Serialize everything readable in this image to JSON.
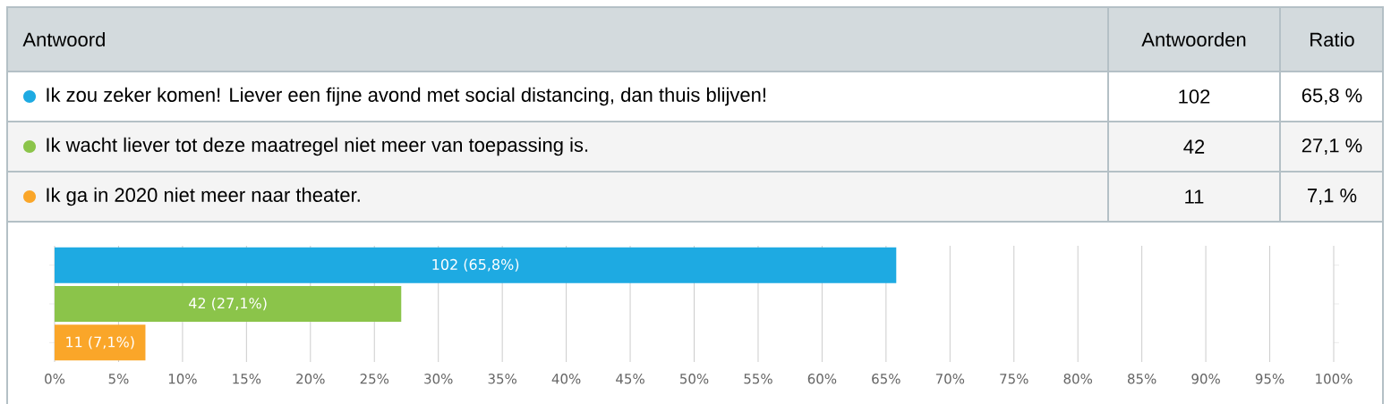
{
  "chart_data": {
    "type": "bar",
    "orientation": "horizontal",
    "categories": [
      null,
      null,
      null
    ],
    "values": [
      65.8,
      27.1,
      7.1
    ],
    "colors": [
      "#1eaae2",
      "#8bc44a",
      "#faa629"
    ],
    "value_labels": [
      "102 (65,8%)",
      "42 (27,1%)",
      "11 (7,1%)"
    ],
    "xlim": [
      0,
      100
    ],
    "xticks": [
      {
        "value": 0,
        "label": "0%"
      },
      {
        "value": 5,
        "label": "5%"
      },
      {
        "value": 10,
        "label": "10%"
      },
      {
        "value": 15,
        "label": "15%"
      },
      {
        "value": 20,
        "label": "20%"
      },
      {
        "value": 25,
        "label": "25%"
      },
      {
        "value": 30,
        "label": "30%"
      },
      {
        "value": 35,
        "label": "35%"
      },
      {
        "value": 40,
        "label": "40%"
      },
      {
        "value": 45,
        "label": "45%"
      },
      {
        "value": 50,
        "label": "50%"
      },
      {
        "value": 55,
        "label": "55%"
      },
      {
        "value": 60,
        "label": "60%"
      },
      {
        "value": 65,
        "label": "65%"
      },
      {
        "value": 70,
        "label": "70%"
      },
      {
        "value": 75,
        "label": "75%"
      },
      {
        "value": 80,
        "label": "80%"
      },
      {
        "value": 85,
        "label": "85%"
      },
      {
        "value": 90,
        "label": "90%"
      },
      {
        "value": 95,
        "label": "95%"
      },
      {
        "value": 100,
        "label": "100%"
      }
    ],
    "grid": "x",
    "tick_labels": "x",
    "annotations": [
      "Antwoord",
      "Antwoorden",
      "Ratio",
      "Ik zou zeker komen! Liever een fijne avond met social distancing, dan thuis blijven!",
      "102",
      "65,8 %",
      "Ik wacht liever tot deze maatregel niet meer van toepassing is.",
      "42",
      "27,1 %",
      "Ik ga in 2020 niet meer naar theater.",
      "11",
      "7,1 %"
    ]
  }
}
